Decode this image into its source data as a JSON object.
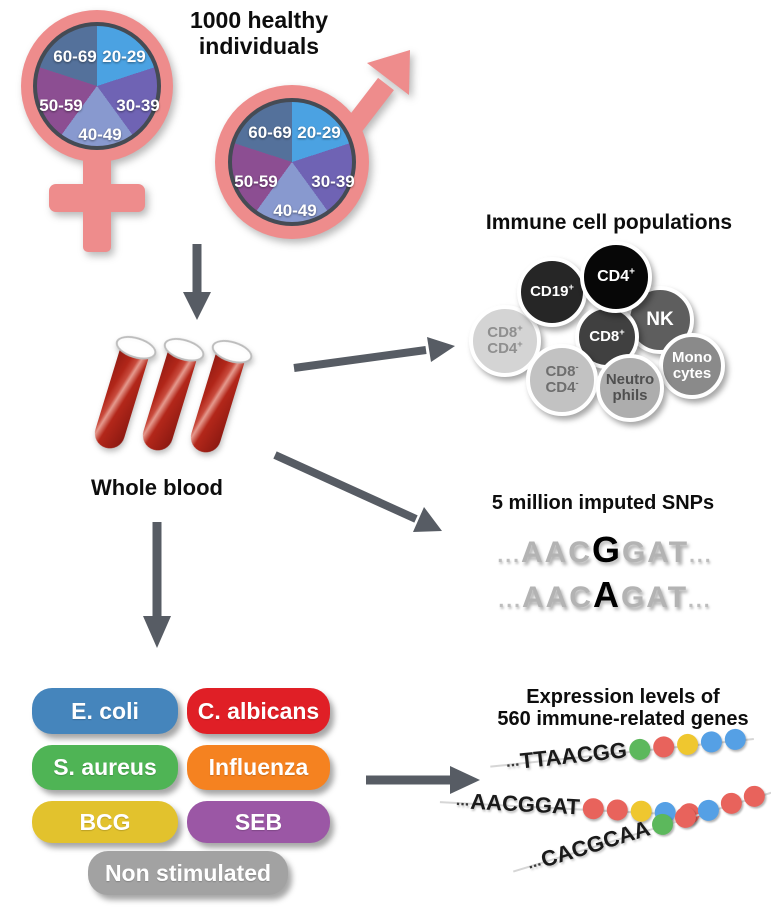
{
  "demographics": {
    "heading_line1": "1000 healthy",
    "heading_line2": "individuals",
    "age_groups": [
      {
        "label": "20-29",
        "color": "#4BA2E2"
      },
      {
        "label": "30-39",
        "color": "#6F63B4"
      },
      {
        "label": "40-49",
        "color": "#8899CF"
      },
      {
        "label": "50-59",
        "color": "#8C4E92"
      },
      {
        "label": "60-69",
        "color": "#54719B"
      }
    ],
    "symbol_color": "#EE8C8C"
  },
  "whole_blood": {
    "label": "Whole blood"
  },
  "immune_cells": {
    "heading": "Immune cell populations",
    "cells": [
      {
        "id": "nk",
        "line1": "NK",
        "color": "#5E5E5E",
        "text_color": "#ffffff"
      },
      {
        "id": "cd8p-cd4p",
        "line1": "CD8",
        "sup1": "+",
        "line2": "CD4",
        "sup2": "+",
        "color": "#D4D4D4",
        "text_color": "#8F8F8F"
      },
      {
        "id": "cd19",
        "line1": "CD19",
        "sup1": "+",
        "color": "#262626",
        "text_color": "#ffffff"
      },
      {
        "id": "monocytes",
        "line1": "Mono",
        "line2": "cytes",
        "color": "#8A8A8A",
        "text_color": "#ffffff"
      },
      {
        "id": "cd8",
        "line1": "CD8",
        "sup1": "+",
        "color": "#404040",
        "text_color": "#ffffff"
      },
      {
        "id": "cd8n-cd4n",
        "line1": "CD8",
        "sup1": "-",
        "line2": "CD4",
        "sup2": "-",
        "color": "#C2C2C2",
        "text_color": "#6E6E6E"
      },
      {
        "id": "neutrophils",
        "line1": "Neutro",
        "line2": "phils",
        "color": "#ADADAD",
        "text_color": "#4F4F4F"
      },
      {
        "id": "cd4",
        "line1": "CD4",
        "sup1": "+",
        "color": "#070707",
        "text_color": "#ffffff"
      }
    ]
  },
  "snps": {
    "heading": "5 million imputed SNPs",
    "sequences": [
      {
        "dots_left": "...",
        "prefix": "AAC",
        "variant": "G",
        "suffix": "GAT",
        "dots_right": "..."
      },
      {
        "dots_left": "...",
        "prefix": "AAC",
        "variant": "A",
        "suffix": "GAT",
        "dots_right": "..."
      }
    ]
  },
  "stimuli": {
    "items": [
      {
        "label": "E. coli",
        "color": "#4585BC"
      },
      {
        "label": "C. albicans",
        "color": "#E01F26"
      },
      {
        "label": "S. aureus",
        "color": "#4FB455"
      },
      {
        "label": "Influenza",
        "color": "#F58220"
      },
      {
        "label": "BCG",
        "color": "#E2C22D"
      },
      {
        "label": "SEB",
        "color": "#9B57A5"
      },
      {
        "label": "Non stimulated",
        "color": "#A2A2A2"
      }
    ]
  },
  "expression": {
    "heading_line1": "Expression levels of",
    "heading_line2": "560 immune-related genes",
    "dot_colors": {
      "green": "#5CB85C",
      "red": "#E8635C",
      "yellow": "#EFC72F",
      "blue": "#55A0E5"
    },
    "strands": [
      {
        "dots_prefix": "...",
        "sequence": "TTAACGG",
        "dots": [
          "green",
          "red",
          "yellow",
          "blue",
          "blue"
        ]
      },
      {
        "dots_prefix": "...",
        "sequence": "AACGGAT",
        "dots": [
          "red",
          "red",
          "yellow",
          "blue",
          "red"
        ]
      },
      {
        "dots_prefix": "...",
        "sequence": "CACGCAA",
        "dots": [
          "green",
          "red",
          "blue",
          "red",
          "red"
        ]
      }
    ]
  }
}
